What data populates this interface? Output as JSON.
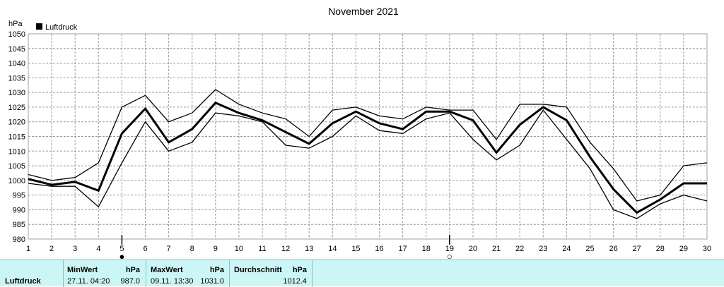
{
  "chart_data": {
    "type": "line",
    "title": "November 2021",
    "ylabel": "hPa",
    "xlabel": "",
    "legend": {
      "label": "Luftdruck",
      "position": "top-left"
    },
    "grid": true,
    "xlim": [
      1,
      30
    ],
    "ylim": [
      980,
      1050
    ],
    "y_ticks": [
      980,
      985,
      990,
      995,
      1000,
      1005,
      1010,
      1015,
      1020,
      1025,
      1030,
      1035,
      1040,
      1045,
      1050
    ],
    "x": [
      1,
      2,
      3,
      4,
      5,
      6,
      7,
      8,
      9,
      10,
      11,
      12,
      13,
      14,
      15,
      16,
      17,
      18,
      19,
      20,
      21,
      22,
      23,
      24,
      25,
      26,
      27,
      28,
      29,
      30
    ],
    "series": [
      {
        "name": "Luftdruck",
        "role": "mean",
        "values": [
          1000.5,
          998.5,
          999.5,
          996.5,
          1016,
          1024.5,
          1013,
          1017.5,
          1026.5,
          1023,
          1020.5,
          1016.5,
          1012.5,
          1019.5,
          1023.5,
          1019.5,
          1017.5,
          1023.5,
          1023.5,
          1020.5,
          1009.5,
          1019,
          1025,
          1020.5,
          1008,
          997,
          989,
          993.5,
          999,
          999
        ]
      },
      {
        "role": "max",
        "values": [
          1002,
          1000,
          1001,
          1006,
          1025,
          1029,
          1020,
          1023,
          1031,
          1026,
          1023,
          1021,
          1015,
          1024,
          1025,
          1022,
          1021,
          1025,
          1024,
          1024,
          1014,
          1026,
          1026,
          1025,
          1013,
          1004,
          993,
          995,
          1005,
          1006
        ]
      },
      {
        "role": "min",
        "values": [
          999,
          998,
          998,
          991,
          1006,
          1020,
          1010,
          1013,
          1023,
          1022,
          1020,
          1012,
          1011,
          1015,
          1022,
          1017,
          1016,
          1021,
          1023,
          1014,
          1007,
          1012,
          1024,
          1014,
          1004,
          990,
          987,
          992,
          995,
          993
        ]
      }
    ],
    "moon_phases": [
      {
        "day": 5,
        "symbol": "●"
      },
      {
        "day": 19,
        "symbol": "○"
      }
    ],
    "colors": {
      "line": "#000000",
      "grid": "#9a9a9a",
      "axis": "#a0a0a0"
    }
  },
  "stats": {
    "row_label": "Luftdruck",
    "min": {
      "header": "MinWert",
      "unit": "hPa",
      "time": "27.11.  04:20",
      "value": "987.0"
    },
    "max": {
      "header": "MaxWert",
      "unit": "hPa",
      "time": "09.11.  13:30",
      "value": "1031.0"
    },
    "avg": {
      "header": "Durchschnitt",
      "unit": "hPa",
      "value": "1012.4"
    },
    "colors": {
      "background": "#ccf6f6"
    }
  }
}
